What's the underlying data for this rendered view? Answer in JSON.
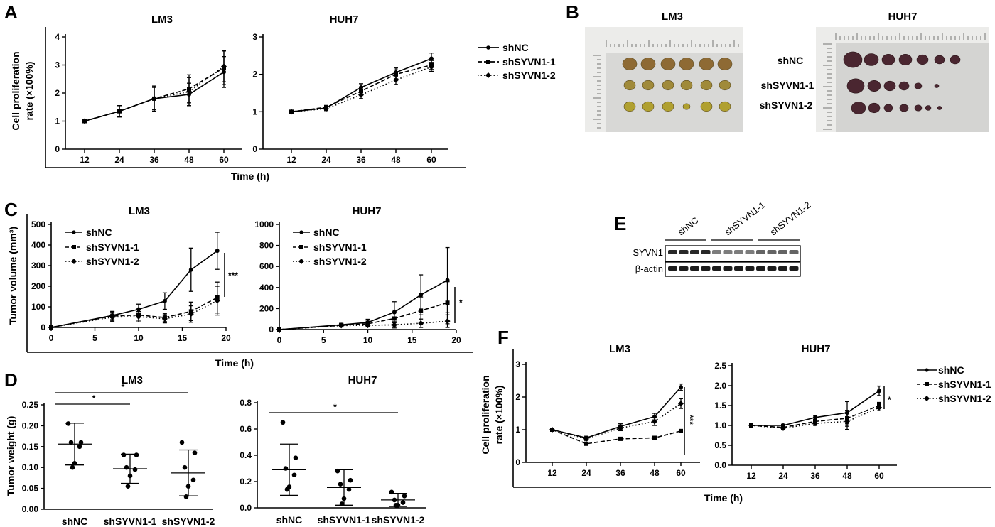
{
  "panel_labels": {
    "A": "A",
    "B": "B",
    "C": "C",
    "D": "D",
    "E": "E",
    "F": "F"
  },
  "legend": {
    "shNC": "shNC",
    "sh1": "shSYVN1-1",
    "sh2": "shSYVN1-2"
  },
  "A": {
    "lm3_title": "LM3",
    "huh7_title": "HUH7",
    "ylabel_1": "Cell proliferation",
    "ylabel_2": "rate (×100%)",
    "xlabel": "Time (h)"
  },
  "B": {
    "lm3_title": "LM3",
    "huh7_title": "HUH7",
    "row1": "shNC",
    "row2": "shSYVN1-1",
    "row3": "shSYVN1-2"
  },
  "C": {
    "lm3_title": "LM3",
    "huh7_title": "HUH7",
    "ylabel": "Tumor volume (mm³)",
    "xlabel": "Time (h)",
    "sig_lm3": "***",
    "sig_huh7": "*"
  },
  "D": {
    "lm3_title": "LM3",
    "huh7_title": "HUH7",
    "ylabel": "Tumor weight (g)",
    "sig": "*"
  },
  "E": {
    "lanes": [
      "shNC",
      "shSYVN1-1",
      "shSYVN1-2"
    ],
    "row1": "SYVN1",
    "row2": "β-actin"
  },
  "F": {
    "lm3_title": "LM3",
    "huh7_title": "HUH7",
    "ylabel_1": "Cell proliferation",
    "ylabel_2": "rate (×100%)",
    "xlabel": "Time (h)",
    "sig_lm3": "***",
    "sig_huh7": "*"
  },
  "chart_data": [
    {
      "id": "A-LM3",
      "type": "line",
      "title": "LM3",
      "xlabel": "Time (h)",
      "ylabel": "Cell proliferation rate (×100%)",
      "x": [
        12,
        24,
        36,
        48,
        60
      ],
      "ylim": [
        0,
        4
      ],
      "yticks": [
        0,
        1,
        2,
        3,
        4
      ],
      "series": [
        {
          "name": "shNC",
          "values": [
            1,
            1.35,
            1.8,
            1.95,
            2.75
          ],
          "err": [
            0,
            0.2,
            0.4,
            0.4,
            0.55
          ]
        },
        {
          "name": "shSYVN1-1",
          "values": [
            1,
            1.35,
            1.8,
            2.15,
            2.9
          ],
          "err": [
            0,
            0.2,
            0.45,
            0.5,
            0.6
          ]
        },
        {
          "name": "shSYVN1-2",
          "values": [
            1,
            1.35,
            1.8,
            2.05,
            2.95
          ],
          "err": [
            0,
            0.2,
            0.45,
            0.5,
            0.55
          ]
        }
      ]
    },
    {
      "id": "A-HUH7",
      "type": "line",
      "title": "HUH7",
      "xlabel": "Time (h)",
      "x": [
        12,
        24,
        36,
        48,
        60
      ],
      "ylim": [
        0,
        3
      ],
      "yticks": [
        0,
        1,
        2,
        3
      ],
      "series": [
        {
          "name": "shNC",
          "values": [
            1,
            1.1,
            1.65,
            2.05,
            2.42
          ],
          "err": [
            0,
            0.05,
            0.1,
            0.12,
            0.15
          ]
        },
        {
          "name": "shSYVN1-1",
          "values": [
            1,
            1.12,
            1.55,
            2.0,
            2.25
          ],
          "err": [
            0,
            0.05,
            0.1,
            0.12,
            0.12
          ]
        },
        {
          "name": "shSYVN1-2",
          "values": [
            1,
            1.08,
            1.45,
            1.85,
            2.2
          ],
          "err": [
            0,
            0.05,
            0.1,
            0.12,
            0.12
          ]
        }
      ]
    },
    {
      "id": "C-LM3",
      "type": "line",
      "title": "LM3",
      "xlabel": "Time (h)",
      "ylabel": "Tumor volume (mm³)",
      "x": [
        0,
        7,
        10,
        13,
        16,
        19
      ],
      "xlim": [
        0,
        20
      ],
      "xticks": [
        0,
        5,
        10,
        15,
        20
      ],
      "ylim": [
        0,
        500
      ],
      "yticks": [
        0,
        100,
        200,
        300,
        400,
        500
      ],
      "series": [
        {
          "name": "shNC",
          "values": [
            0,
            58,
            88,
            128,
            280,
            372
          ],
          "err": [
            0,
            20,
            25,
            40,
            105,
            90
          ]
        },
        {
          "name": "shSYVN1-1",
          "values": [
            0,
            55,
            60,
            48,
            78,
            145
          ],
          "err": [
            0,
            20,
            25,
            20,
            45,
            75
          ]
        },
        {
          "name": "shSYVN1-2",
          "values": [
            0,
            50,
            52,
            42,
            65,
            130
          ],
          "err": [
            0,
            20,
            25,
            20,
            40,
            70
          ]
        }
      ]
    },
    {
      "id": "C-HUH7",
      "type": "line",
      "title": "HUH7",
      "xlabel": "Time (h)",
      "x": [
        0,
        7,
        10,
        13,
        16,
        19
      ],
      "xlim": [
        0,
        20
      ],
      "xticks": [
        0,
        5,
        10,
        15,
        20
      ],
      "ylim": [
        0,
        1000
      ],
      "yticks": [
        0,
        200,
        400,
        600,
        800,
        1000
      ],
      "series": [
        {
          "name": "shNC",
          "values": [
            0,
            45,
            68,
            165,
            330,
            470
          ],
          "err": [
            0,
            15,
            30,
            100,
            190,
            310
          ]
        },
        {
          "name": "shSYVN1-1",
          "values": [
            0,
            40,
            55,
            105,
            180,
            255
          ],
          "err": [
            0,
            15,
            25,
            80,
            130,
            200
          ]
        },
        {
          "name": "shSYVN1-2",
          "values": [
            0,
            38,
            40,
            45,
            60,
            80
          ],
          "err": [
            0,
            10,
            15,
            30,
            40,
            60
          ]
        }
      ]
    },
    {
      "id": "D-LM3",
      "type": "scatter",
      "title": "LM3",
      "ylabel": "Tumor weight (g)",
      "categories": [
        "shNC",
        "shSYVN1-1",
        "shSYVN1-2"
      ],
      "ylim": [
        0,
        0.25
      ],
      "yticks": [
        0.0,
        0.05,
        0.1,
        0.15,
        0.2,
        0.25
      ],
      "groups": [
        {
          "mean": 0.156,
          "sd": 0.05,
          "points": [
            0.205,
            0.16,
            0.16,
            0.15,
            0.11,
            0.1
          ]
        },
        {
          "mean": 0.097,
          "sd": 0.035,
          "points": [
            0.13,
            0.13,
            0.1,
            0.095,
            0.08,
            0.055
          ]
        },
        {
          "mean": 0.087,
          "sd": 0.055,
          "points": [
            0.16,
            0.135,
            0.1,
            0.07,
            0.055,
            0.03
          ]
        }
      ],
      "comparisons": [
        {
          "pair": [
            "shNC",
            "shSYVN1-1"
          ],
          "label": "*"
        },
        {
          "pair": [
            "shNC",
            "shSYVN1-2"
          ],
          "label": "*"
        }
      ]
    },
    {
      "id": "D-HUH7",
      "type": "scatter",
      "title": "HUH7",
      "categories": [
        "shNC",
        "shSYVN1-1",
        "shSYVN1-2"
      ],
      "ylim": [
        0,
        0.8
      ],
      "yticks": [
        0.0,
        0.2,
        0.4,
        0.6,
        0.8
      ],
      "groups": [
        {
          "mean": 0.29,
          "sd": 0.195,
          "points": [
            0.65,
            0.38,
            0.3,
            0.25,
            0.16,
            0.14
          ]
        },
        {
          "mean": 0.155,
          "sd": 0.135,
          "points": [
            0.28,
            0.21,
            0.18,
            0.14,
            0.07,
            0.03
          ]
        },
        {
          "mean": 0.06,
          "sd": 0.05,
          "points": [
            0.12,
            0.09,
            0.06,
            0.04,
            0.02,
            0.02
          ]
        }
      ],
      "comparisons": [
        {
          "pair": [
            "shNC",
            "shSYVN1-2"
          ],
          "label": "*"
        }
      ]
    },
    {
      "id": "F-LM3",
      "type": "line",
      "title": "LM3",
      "xlabel": "Time (h)",
      "ylabel": "Cell proliferation rate (×100%)",
      "x": [
        12,
        24,
        36,
        48,
        60
      ],
      "ylim": [
        0,
        3
      ],
      "yticks": [
        0,
        1,
        2,
        3
      ],
      "series": [
        {
          "name": "shNC",
          "values": [
            1,
            0.75,
            1.1,
            1.4,
            2.3
          ],
          "err": [
            0,
            0.05,
            0.08,
            0.1,
            0.1
          ]
        },
        {
          "name": "shSYVN1-1",
          "values": [
            1,
            0.57,
            0.72,
            0.75,
            0.96
          ],
          "err": [
            0,
            0.03,
            0.03,
            0.03,
            0.03
          ]
        },
        {
          "name": "shSYVN1-2",
          "values": [
            1,
            0.72,
            1.05,
            1.25,
            1.8
          ],
          "err": [
            0,
            0.05,
            0.08,
            0.12,
            0.15
          ]
        }
      ]
    },
    {
      "id": "F-HUH7",
      "type": "line",
      "title": "HUH7",
      "xlabel": "Time (h)",
      "x": [
        12,
        24,
        36,
        48,
        60
      ],
      "ylim": [
        0,
        2.5
      ],
      "yticks": [
        0.0,
        0.5,
        1.0,
        1.5,
        2.0,
        2.5
      ],
      "series": [
        {
          "name": "shNC",
          "values": [
            1,
            1.0,
            1.2,
            1.32,
            1.87
          ],
          "err": [
            0,
            0.03,
            0.05,
            0.28,
            0.12
          ]
        },
        {
          "name": "shSYVN1-1",
          "values": [
            1,
            0.95,
            1.1,
            1.18,
            1.5
          ],
          "err": [
            0,
            0.03,
            0.05,
            0.2,
            0.08
          ]
        },
        {
          "name": "shSYVN1-2",
          "values": [
            1,
            0.93,
            1.05,
            1.1,
            1.45
          ],
          "err": [
            0,
            0.03,
            0.05,
            0.2,
            0.08
          ]
        }
      ]
    }
  ]
}
